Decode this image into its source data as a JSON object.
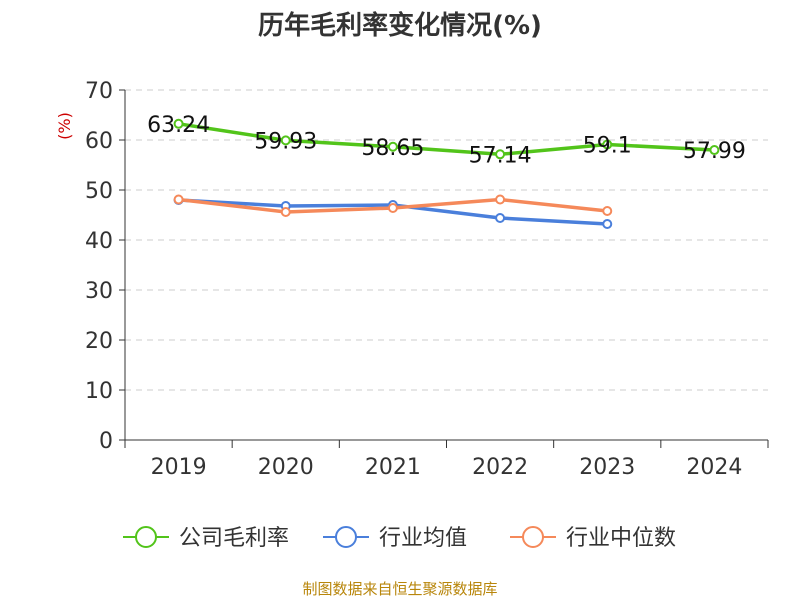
{
  "chart_data": {
    "type": "line",
    "title": "历年毛利率变化情况(%)",
    "ylabel": "(%)",
    "xlabel": "",
    "categories": [
      "2019",
      "2020",
      "2021",
      "2022",
      "2023",
      "2024"
    ],
    "ylim": [
      0,
      70
    ],
    "yticks": [
      "0",
      "10",
      "20",
      "30",
      "40",
      "50",
      "60",
      "70"
    ],
    "grid": true,
    "legend_position": "bottom",
    "series": [
      {
        "name": "公司毛利率",
        "color": "#52c41a",
        "values": [
          63.24,
          59.93,
          58.65,
          57.14,
          59.1,
          57.99
        ],
        "labels": [
          "63.24",
          "59.93",
          "58.65",
          "57.14",
          "59.1",
          "57.99"
        ]
      },
      {
        "name": "行业均值",
        "color": "#4a7fdb",
        "values": [
          48.0,
          46.8,
          47.0,
          44.4,
          43.2,
          null
        ]
      },
      {
        "name": "行业中位数",
        "color": "#f5895a",
        "values": [
          48.1,
          45.6,
          46.4,
          48.1,
          45.8,
          null
        ]
      }
    ],
    "source": "制图数据来自恒生聚源数据库"
  }
}
